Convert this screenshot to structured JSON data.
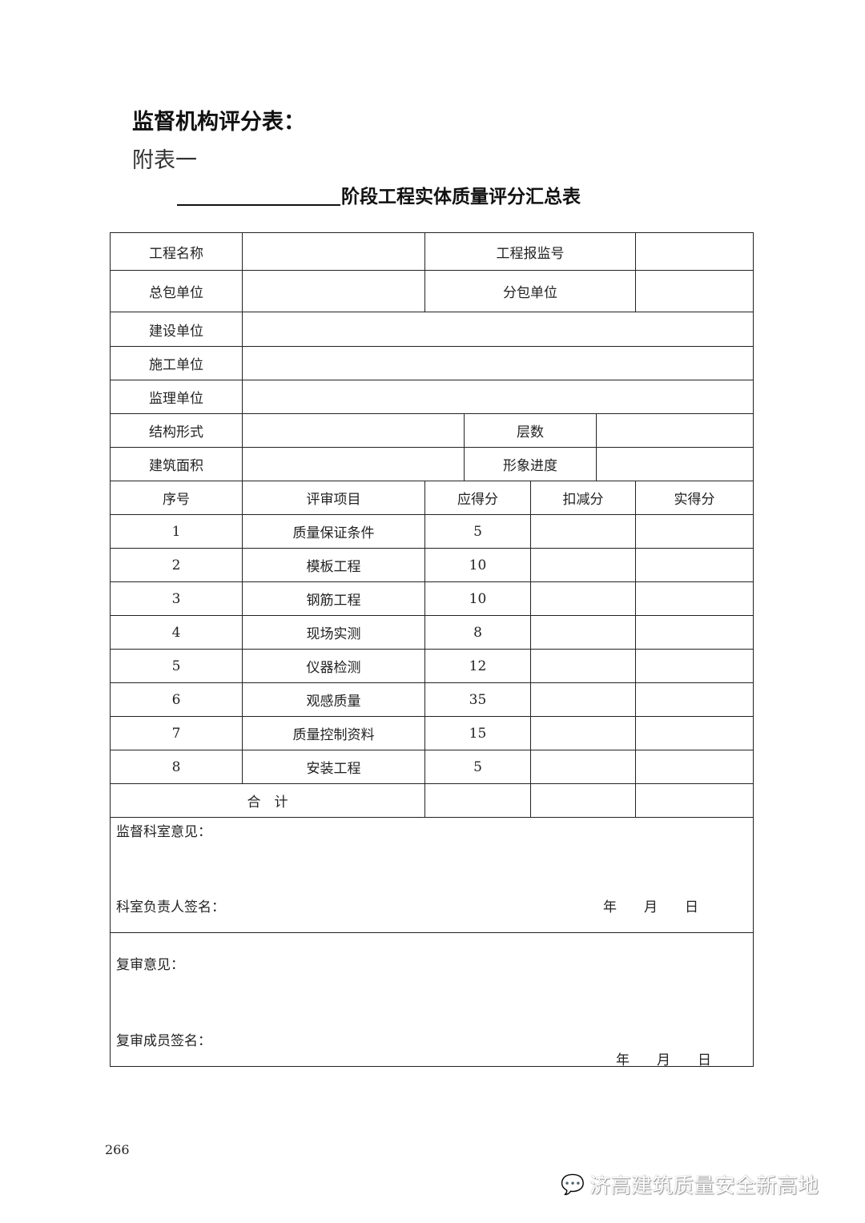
{
  "heading": "监督机构评分表：",
  "appendix": "附表一",
  "table_title": "阶段工程实体质量评分汇总表",
  "info": {
    "project_name": "工程名称",
    "report_no": "工程报监号",
    "general_contractor": "总包单位",
    "subcontractor": "分包单位",
    "owner": "建设单位",
    "builder": "施工单位",
    "supervisor": "监理单位",
    "structure": "结构形式",
    "floors": "层数",
    "area": "建筑面积",
    "progress": "形象进度"
  },
  "columns": [
    "序号",
    "评审项目",
    "应得分",
    "扣减分",
    "实得分"
  ],
  "items": [
    {
      "no": "1",
      "name": "质量保证条件",
      "score": "5"
    },
    {
      "no": "2",
      "name": "模板工程",
      "score": "10"
    },
    {
      "no": "3",
      "name": "钢筋工程",
      "score": "10"
    },
    {
      "no": "4",
      "name": "现场实测",
      "score": "8"
    },
    {
      "no": "5",
      "name": "仪器检测",
      "score": "12"
    },
    {
      "no": "6",
      "name": "观感质量",
      "score": "35"
    },
    {
      "no": "7",
      "name": "质量控制资料",
      "score": "15"
    },
    {
      "no": "8",
      "name": "安装工程",
      "score": "5"
    }
  ],
  "total": "合　计",
  "section_opinion": {
    "label": "监督科室意见：",
    "sign": "科室负责人签名：",
    "date": "年　　月　　日"
  },
  "review": {
    "label": "复审意见：",
    "sign": "复审成员签名：",
    "date": "年　　月　　日"
  },
  "page_number": "266",
  "watermark": "济高建筑质量安全新高地"
}
